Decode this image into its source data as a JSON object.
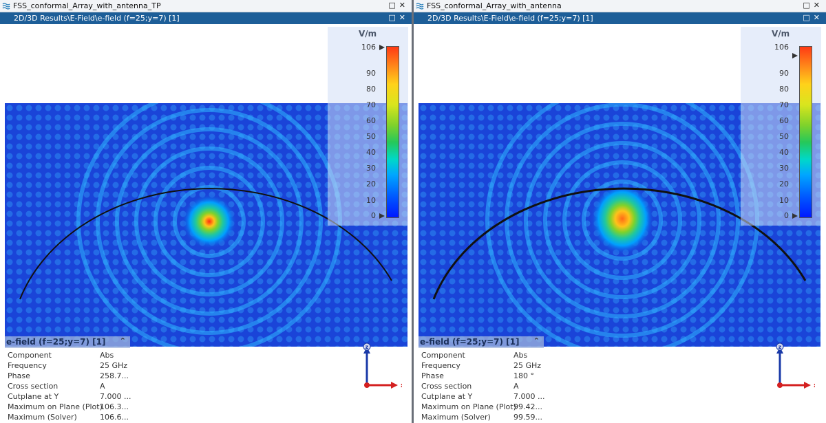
{
  "windows": [
    {
      "title": "FSS_conformal_Array_with_antenna_TP",
      "subtitle": "2D/3D Results\\E-Field\\e-field (f=25;y=7) [1]",
      "colorbar": {
        "unit": "V/m",
        "ticks": [
          "106",
          "90",
          "80",
          "70",
          "60",
          "50",
          "40",
          "30",
          "20",
          "10",
          "0"
        ]
      },
      "info": {
        "header": "e-field (f=25;y=7) [1]",
        "rows": [
          {
            "k": "Component",
            "v": "Abs"
          },
          {
            "k": "Frequency",
            "v": "25 GHz"
          },
          {
            "k": "Phase",
            "v": "258.7..."
          },
          {
            "k": "Cross section",
            "v": "A"
          },
          {
            "k": "Cutplane at Y",
            "v": "7.000 ..."
          },
          {
            "k": "Maximum on Plane (Plot)",
            "v": "106.3..."
          },
          {
            "k": "Maximum (Solver)",
            "v": "106.6..."
          }
        ]
      },
      "axes": {
        "z": "z",
        "x": "x"
      }
    },
    {
      "title": "FSS_conformal_Array_with_antenna",
      "subtitle": "2D/3D Results\\E-Field\\e-field (f=25;y=7) [1]",
      "colorbar": {
        "unit": "V/m",
        "ticks": [
          "106",
          "90",
          "80",
          "70",
          "60",
          "50",
          "40",
          "30",
          "20",
          "10",
          "0"
        ]
      },
      "info": {
        "header": "e-field (f=25;y=7) [1]",
        "rows": [
          {
            "k": "Component",
            "v": "Abs"
          },
          {
            "k": "Frequency",
            "v": "25 GHz"
          },
          {
            "k": "Phase",
            "v": "180 °"
          },
          {
            "k": "Cross section",
            "v": "A"
          },
          {
            "k": "Cutplane at Y",
            "v": "7.000 ..."
          },
          {
            "k": "Maximum on Plane (Plot)",
            "v": "99.42..."
          },
          {
            "k": "Maximum (Solver)",
            "v": "99.59..."
          }
        ]
      },
      "axes": {
        "z": "z",
        "x": "x"
      }
    }
  ],
  "colors": {
    "subbar": "#1d5e98",
    "field_bg": "#1a44d8",
    "accent": "#d42020"
  },
  "icons": {
    "window": "cst-window-icon",
    "maximize": "maximize-icon",
    "close": "close-icon",
    "collapse": "collapse-icon"
  }
}
